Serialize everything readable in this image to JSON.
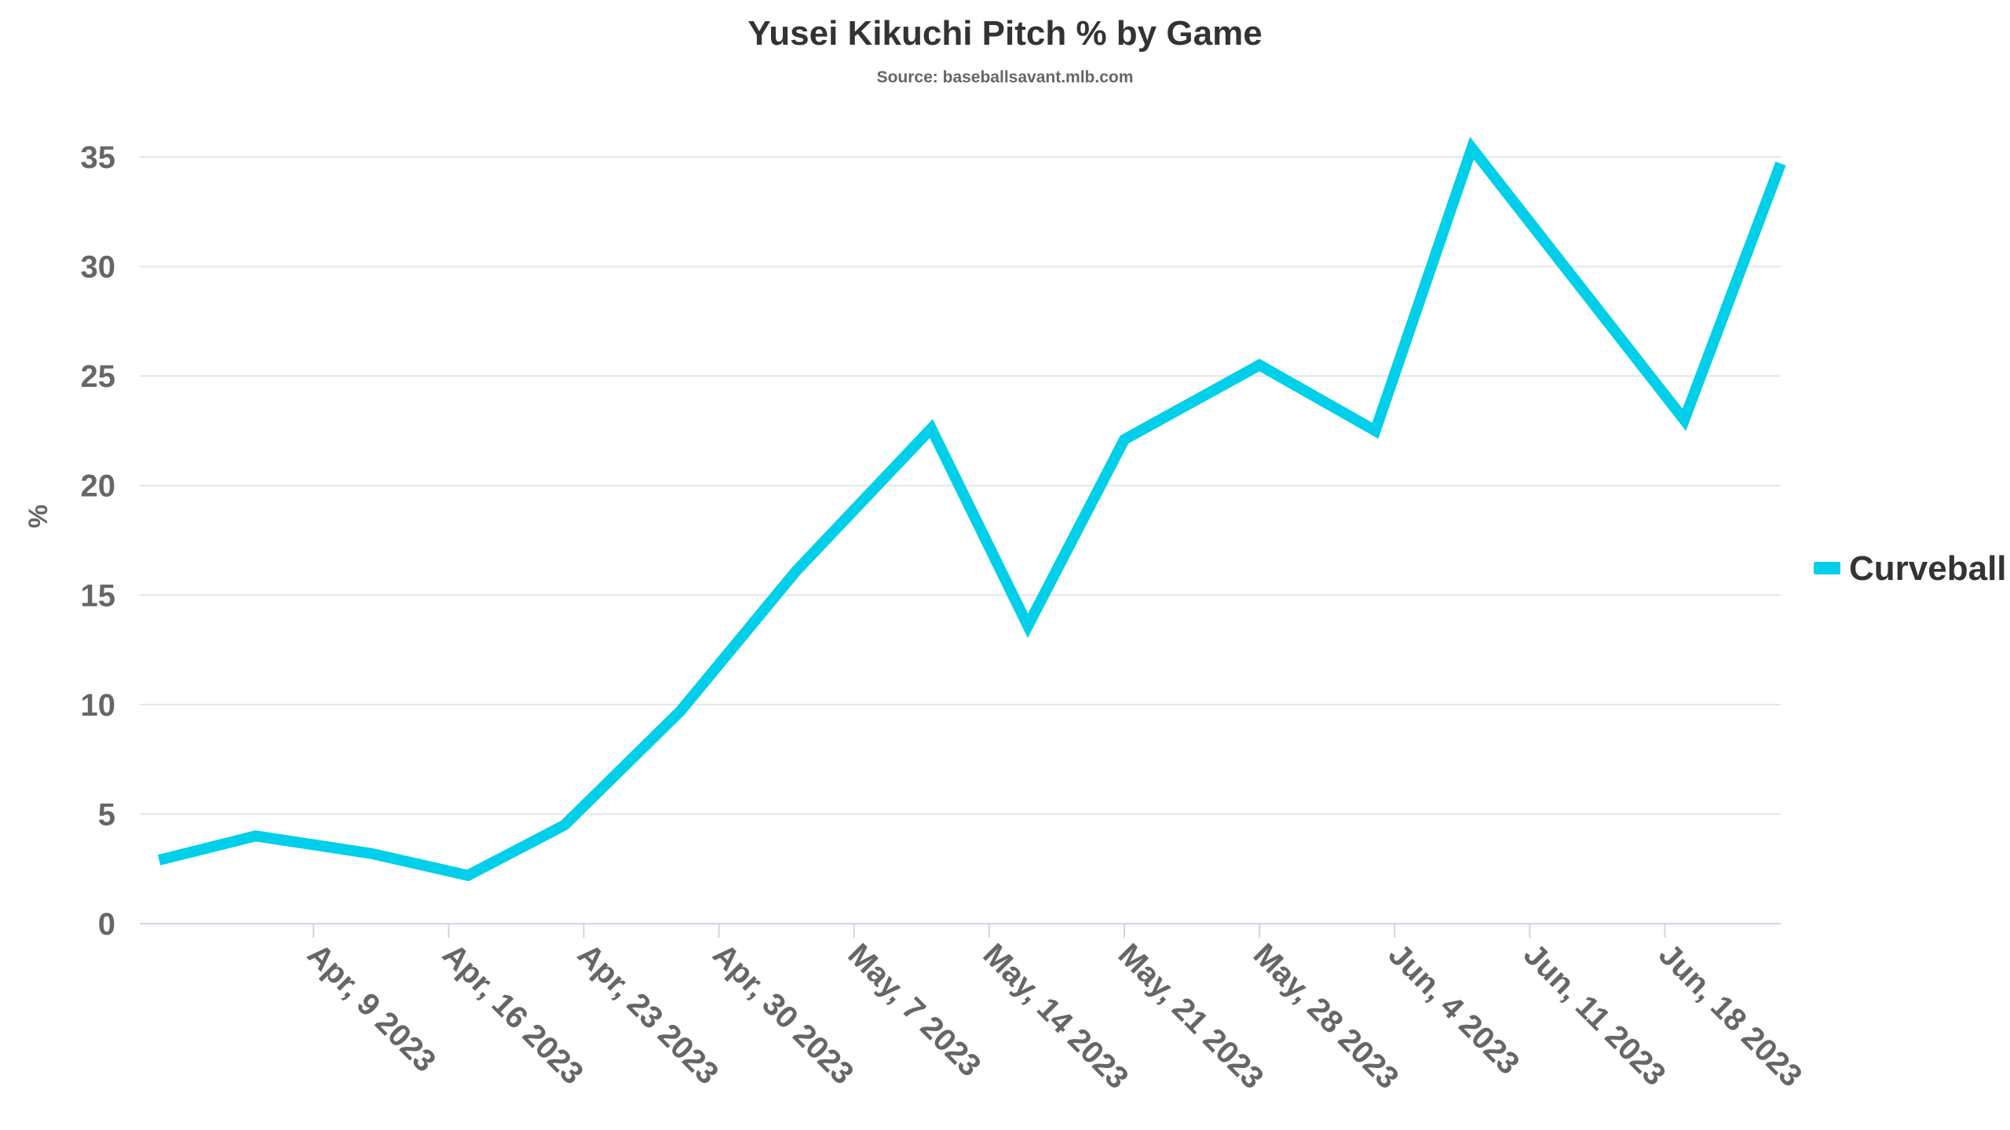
{
  "chart_data": {
    "type": "line",
    "title": "Yusei Kikuchi Pitch % by Game",
    "subtitle": "Source: baseballsavant.mlb.com",
    "ylabel": "%",
    "xlabel": "",
    "ylim": [
      0,
      35
    ],
    "yticks": [
      0,
      5,
      10,
      15,
      20,
      25,
      30,
      35
    ],
    "xlim": [
      "2023-03-31",
      "2023-06-24"
    ],
    "xticks": [
      {
        "date": "2023-04-09",
        "label": "Apr, 9 2023"
      },
      {
        "date": "2023-04-16",
        "label": "Apr, 16 2023"
      },
      {
        "date": "2023-04-23",
        "label": "Apr, 23 2023"
      },
      {
        "date": "2023-04-30",
        "label": "Apr, 30 2023"
      },
      {
        "date": "2023-05-07",
        "label": "May, 7 2023"
      },
      {
        "date": "2023-05-14",
        "label": "May, 14 2023"
      },
      {
        "date": "2023-05-21",
        "label": "May, 21 2023"
      },
      {
        "date": "2023-05-28",
        "label": "May, 28 2023"
      },
      {
        "date": "2023-06-04",
        "label": "Jun, 4 2023"
      },
      {
        "date": "2023-06-11",
        "label": "Jun, 11 2023"
      },
      {
        "date": "2023-06-18",
        "label": "Jun, 18 2023"
      }
    ],
    "grid": "horizontal",
    "legend_position": "right",
    "series": [
      {
        "name": "Curveball",
        "color": "#00cfea",
        "points": [
          {
            "x": "2023-04-01",
            "y": 2.9
          },
          {
            "x": "2023-04-06",
            "y": 4.0
          },
          {
            "x": "2023-04-12",
            "y": 3.2
          },
          {
            "x": "2023-04-17",
            "y": 2.2
          },
          {
            "x": "2023-04-22",
            "y": 4.5
          },
          {
            "x": "2023-04-28",
            "y": 9.7
          },
          {
            "x": "2023-05-04",
            "y": 16.1
          },
          {
            "x": "2023-05-11",
            "y": 22.6
          },
          {
            "x": "2023-05-16",
            "y": 13.6
          },
          {
            "x": "2023-05-21",
            "y": 22.1
          },
          {
            "x": "2023-05-28",
            "y": 25.5
          },
          {
            "x": "2023-06-03",
            "y": 22.5
          },
          {
            "x": "2023-06-08",
            "y": 35.4
          },
          {
            "x": "2023-06-19",
            "y": 23.0
          },
          {
            "x": "2023-06-24",
            "y": 34.7
          }
        ]
      }
    ]
  }
}
